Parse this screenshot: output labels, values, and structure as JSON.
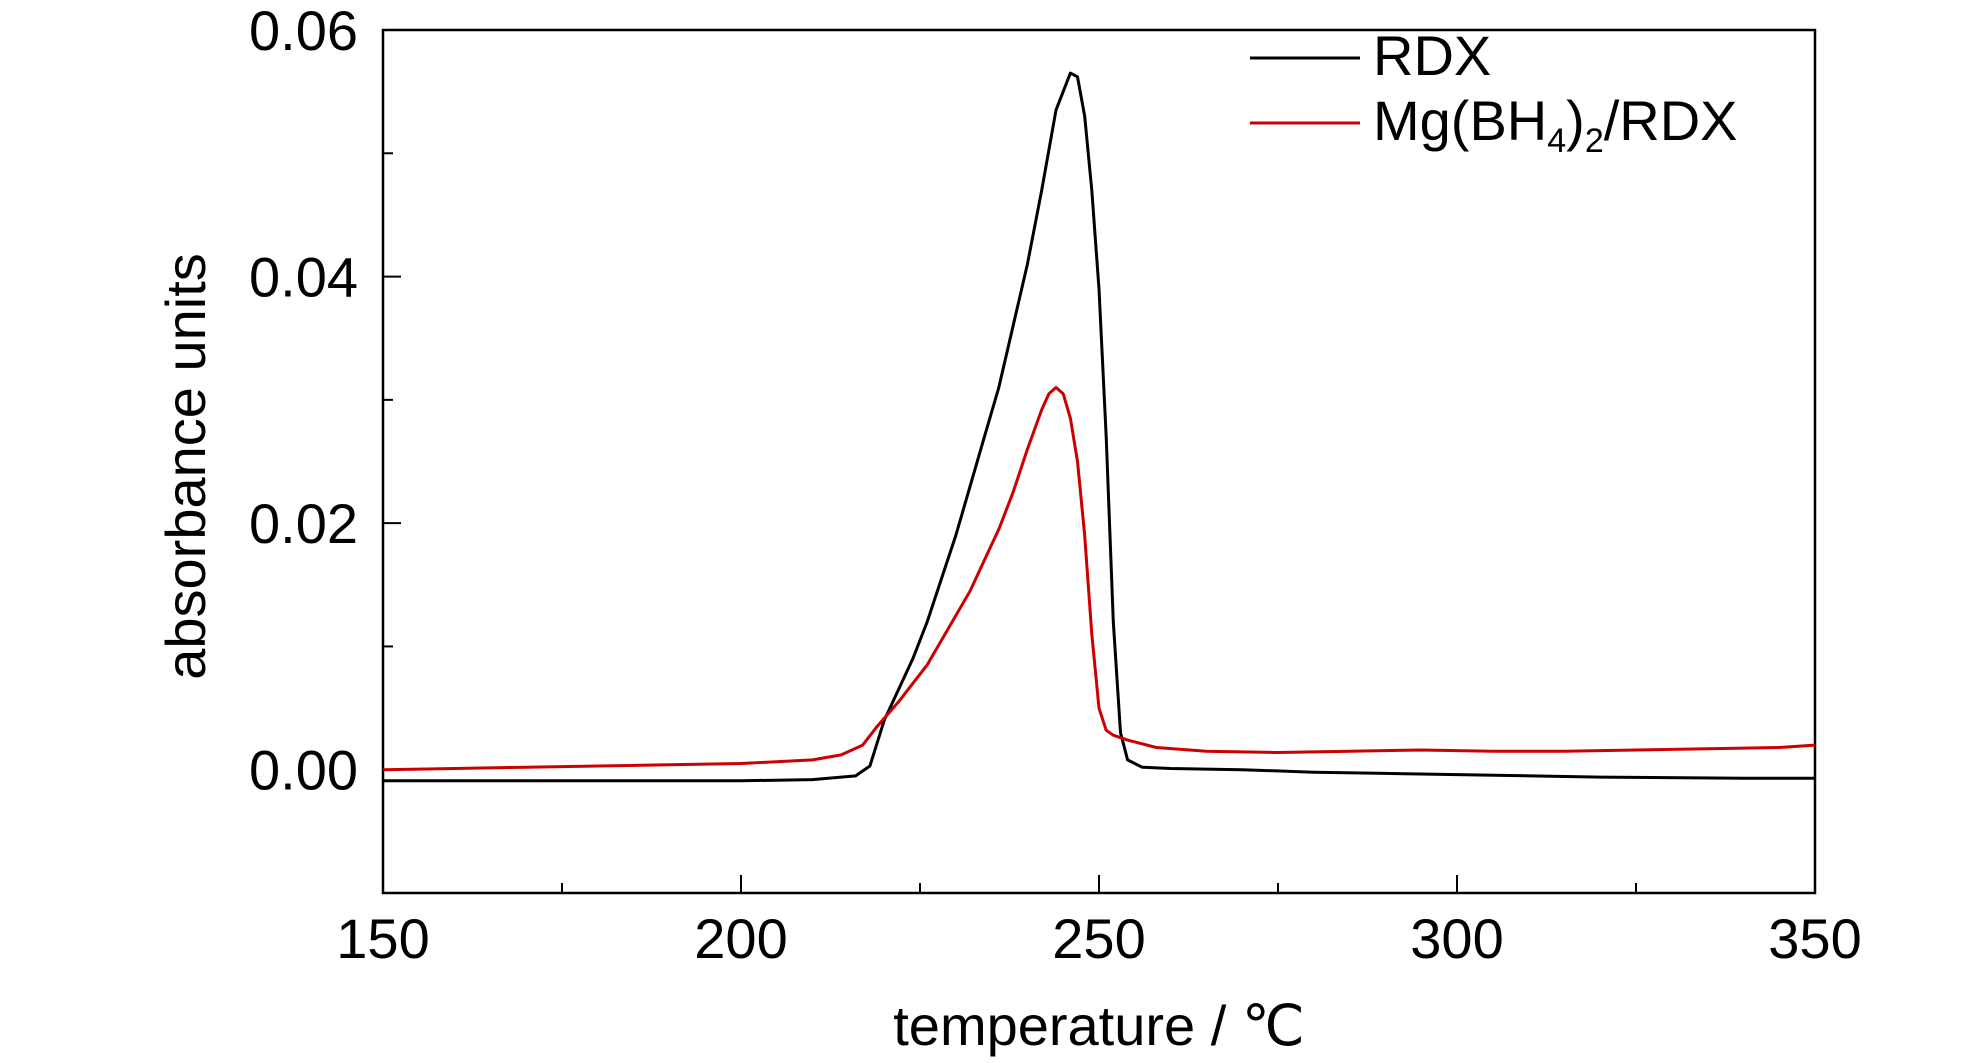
{
  "chart_data": {
    "type": "line",
    "title": "",
    "xlabel": "temperature / ℃",
    "ylabel": "absorbance units",
    "xlim": [
      150,
      350
    ],
    "ylim": [
      -0.01,
      0.06
    ],
    "x_ticks": [
      "150",
      "200",
      "250",
      "300",
      "350"
    ],
    "y_ticks": [
      "0.00",
      "0.02",
      "0.04",
      "0.06"
    ],
    "legend_position": "top-right",
    "grid": false,
    "series": [
      {
        "name": "RDX",
        "color": "#000000",
        "points": [
          [
            150,
            -0.0009
          ],
          [
            160,
            -0.0009
          ],
          [
            170,
            -0.0009
          ],
          [
            180,
            -0.0009
          ],
          [
            190,
            -0.0009
          ],
          [
            200,
            -0.0009
          ],
          [
            210,
            -0.0008
          ],
          [
            216,
            -0.0005
          ],
          [
            218,
            0.0003
          ],
          [
            220,
            0.004
          ],
          [
            222,
            0.0065
          ],
          [
            224,
            0.009
          ],
          [
            226,
            0.012
          ],
          [
            228,
            0.0155
          ],
          [
            230,
            0.019
          ],
          [
            232,
            0.023
          ],
          [
            234,
            0.027
          ],
          [
            236,
            0.031
          ],
          [
            238,
            0.036
          ],
          [
            240,
            0.041
          ],
          [
            242,
            0.047
          ],
          [
            244,
            0.0535
          ],
          [
            246,
            0.0565
          ],
          [
            247,
            0.0562
          ],
          [
            248,
            0.053
          ],
          [
            249,
            0.047
          ],
          [
            250,
            0.039
          ],
          [
            251,
            0.027
          ],
          [
            252,
            0.012
          ],
          [
            253,
            0.003
          ],
          [
            254,
            0.0008
          ],
          [
            256,
            0.0002
          ],
          [
            260,
            0.0001
          ],
          [
            270,
            0.0
          ],
          [
            280,
            -0.0002
          ],
          [
            290,
            -0.0003
          ],
          [
            300,
            -0.0004
          ],
          [
            320,
            -0.0006
          ],
          [
            340,
            -0.0007
          ],
          [
            350,
            -0.0007
          ]
        ]
      },
      {
        "name": "Mg(BH4)2/RDX",
        "label_parts": {
          "base": "Mg(BH",
          "sub1": "4",
          "mid": ")",
          "sub2": "2",
          "tail": "/RDX"
        },
        "color": "#cc0000",
        "points": [
          [
            150,
            0.0
          ],
          [
            160,
            0.0001
          ],
          [
            170,
            0.0002
          ],
          [
            180,
            0.0003
          ],
          [
            190,
            0.0004
          ],
          [
            200,
            0.0005
          ],
          [
            210,
            0.0008
          ],
          [
            214,
            0.0012
          ],
          [
            217,
            0.002
          ],
          [
            219,
            0.0035
          ],
          [
            222,
            0.0055
          ],
          [
            224,
            0.007
          ],
          [
            226,
            0.0085
          ],
          [
            228,
            0.0105
          ],
          [
            230,
            0.0125
          ],
          [
            232,
            0.0145
          ],
          [
            234,
            0.017
          ],
          [
            236,
            0.0195
          ],
          [
            238,
            0.0225
          ],
          [
            240,
            0.026
          ],
          [
            242,
            0.0292
          ],
          [
            243,
            0.0305
          ],
          [
            244,
            0.031
          ],
          [
            245,
            0.0305
          ],
          [
            246,
            0.0285
          ],
          [
            247,
            0.025
          ],
          [
            248,
            0.019
          ],
          [
            249,
            0.011
          ],
          [
            250,
            0.005
          ],
          [
            251,
            0.0032
          ],
          [
            252,
            0.0028
          ],
          [
            254,
            0.0024
          ],
          [
            258,
            0.0018
          ],
          [
            265,
            0.0015
          ],
          [
            275,
            0.0014
          ],
          [
            285,
            0.0015
          ],
          [
            295,
            0.0016
          ],
          [
            305,
            0.0015
          ],
          [
            315,
            0.0015
          ],
          [
            325,
            0.0016
          ],
          [
            335,
            0.0017
          ],
          [
            345,
            0.0018
          ],
          [
            350,
            0.002
          ]
        ]
      }
    ]
  }
}
